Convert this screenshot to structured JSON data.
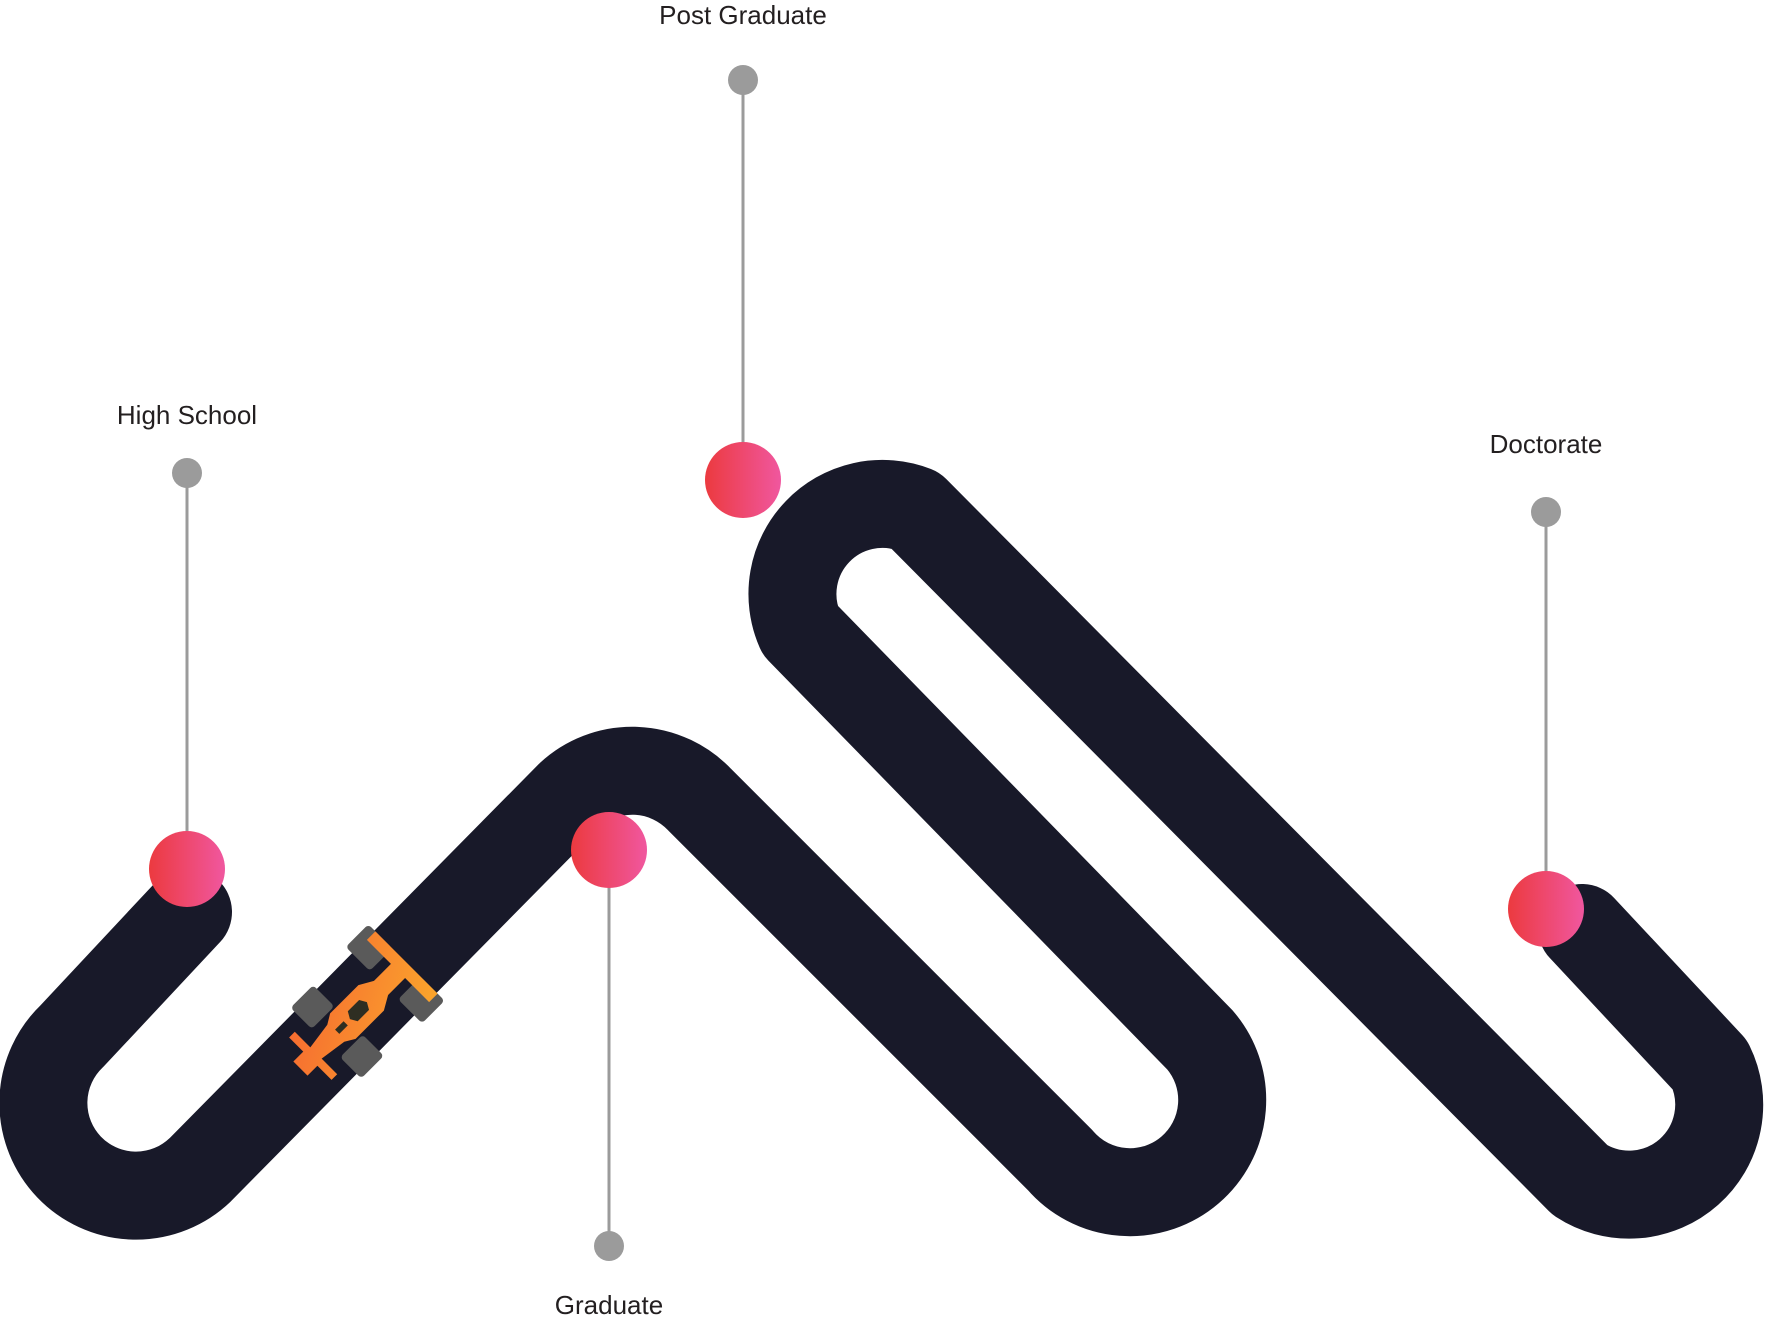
{
  "colors": {
    "track": "#181929",
    "connector": "#9b9b9b",
    "marker_start": "#ec3a3f",
    "marker_end": "#f0579f",
    "car_body_start": "#f56531",
    "car_body_end": "#fba52c",
    "car_wheel": "#5a5a5a",
    "car_detail": "#2e2e22",
    "label_text": "#231f20"
  },
  "milestones": {
    "high_school": {
      "label": "High School"
    },
    "post_graduate": {
      "label": "Post Graduate"
    },
    "graduate": {
      "label": "Graduate"
    },
    "doctorate": {
      "label": "Doctorate"
    }
  },
  "icons": {
    "vehicle": "race-car-icon"
  }
}
